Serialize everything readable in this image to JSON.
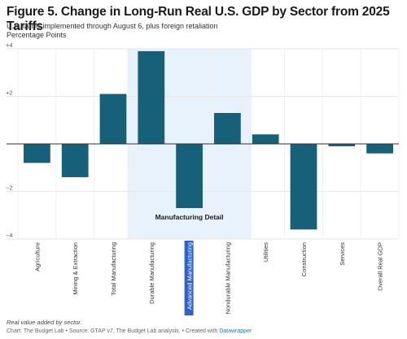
{
  "title": "Figure 5. Change in Long-Run Real U.S. GDP by Sector from 2025 Tariffs",
  "subtitle_line1": "U.S. tariffs implemented through August 6, plus foreign retaliation",
  "subtitle_line2": "Percentage Points",
  "footnote": "Real value added by sector.",
  "credit": "Chart: The Budget Lab • Source: GTAP v7, The Budget Lab analysis. • Created with",
  "credit_link": "Datawrapper",
  "colors": {
    "bar": "#16607a",
    "highlight": "#e8f2fd",
    "grid": "#e6e6e6",
    "zero": "#333333",
    "selected_label_bg": "#2f63c9"
  },
  "chart_data": {
    "type": "bar",
    "categories": [
      "Agriculture",
      "Mining & Extraction",
      "Total Manufacturing",
      "Durable Manufacturing",
      "Advanced Manufacturing",
      "Nondurable Manufacturing",
      "Utilities",
      "Construction",
      "Services",
      "Overall Real GDP"
    ],
    "values": [
      -0.8,
      -1.4,
      2.1,
      3.9,
      -2.7,
      1.3,
      0.4,
      -3.6,
      -0.1,
      -0.4
    ],
    "ylim": [
      -4,
      4
    ],
    "yticks": [
      -4,
      -2,
      0,
      2,
      4
    ],
    "ytick_labels": [
      "−4",
      "−2",
      "",
      "+2",
      "+4"
    ],
    "grid": true,
    "highlight_range": [
      "Durable Manufacturing",
      "Nondurable Manufacturing"
    ],
    "annotation": "Manufacturing Detail",
    "selected_category": "Advanced Manufacturing"
  }
}
